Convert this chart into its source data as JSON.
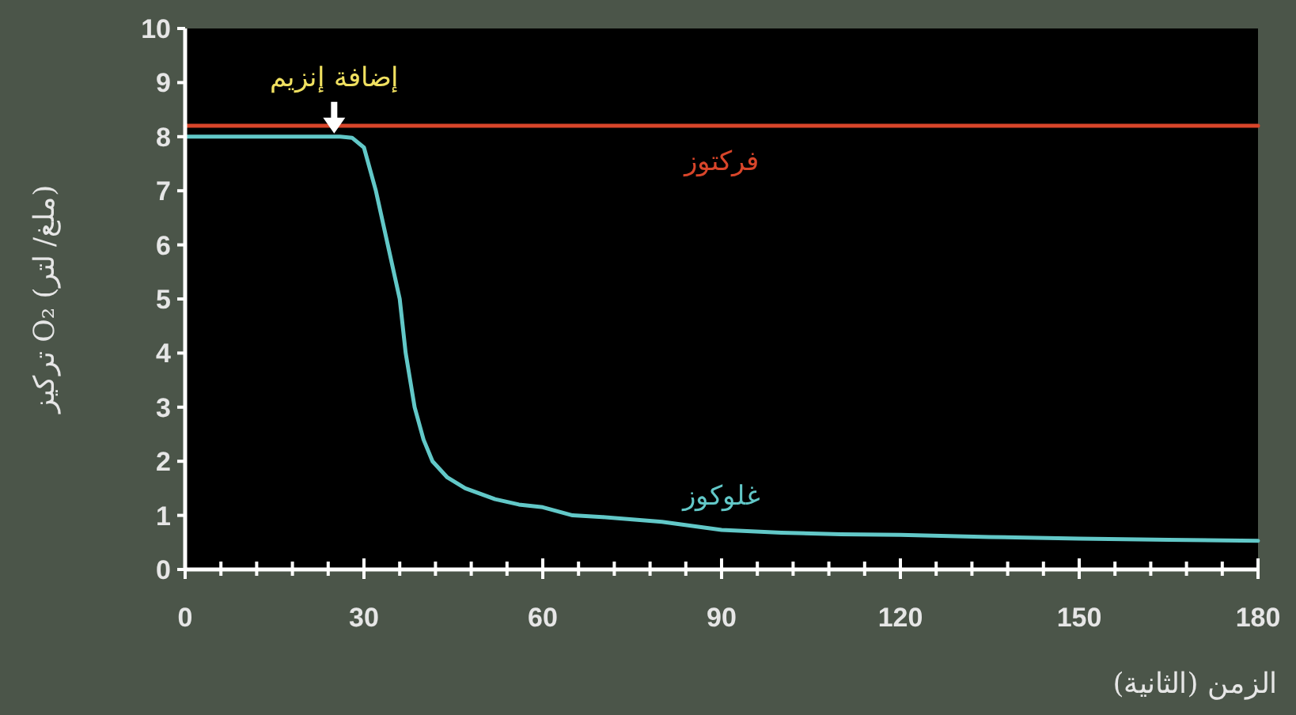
{
  "chart_data": {
    "type": "line",
    "xlabel": "الزمن (الثانية)",
    "ylabel": "تركيز O₂ (ملغ/ لتر)",
    "series": [
      {
        "name": "فركتوز",
        "color": "#d8452a",
        "x": [
          0,
          180
        ],
        "values": [
          8.2,
          8.2
        ]
      },
      {
        "name": "غلوكوز",
        "color": "#62c8c8",
        "x": [
          0,
          10,
          20,
          26,
          28,
          30,
          32,
          34,
          36,
          37,
          38.5,
          40,
          41.5,
          44,
          47,
          52,
          56,
          60,
          65,
          70,
          80,
          90,
          100,
          110,
          120,
          135,
          150,
          165,
          180
        ],
        "values": [
          8.0,
          8.0,
          8.0,
          8.0,
          7.98,
          7.8,
          7.0,
          6.0,
          5.0,
          4.0,
          3.0,
          2.4,
          2.0,
          1.7,
          1.5,
          1.3,
          1.2,
          1.15,
          1.0,
          0.97,
          0.88,
          0.73,
          0.68,
          0.65,
          0.64,
          0.6,
          0.57,
          0.55,
          0.53
        ]
      }
    ],
    "xlim": [
      0,
      180
    ],
    "ylim": [
      0,
      10
    ],
    "xticks": [
      0,
      {
        "value": 6,
        "label": null
      },
      {
        "value": 12,
        "label": null
      },
      {
        "value": 18,
        "label": null
      },
      {
        "value": 24,
        "label": null
      },
      30,
      {
        "value": 36,
        "label": null
      },
      {
        "value": 42,
        "label": null
      },
      {
        "value": 48,
        "label": null
      },
      {
        "value": 54,
        "label": null
      },
      60,
      {
        "value": 66,
        "label": null
      },
      {
        "value": 72,
        "label": null
      },
      {
        "value": 78,
        "label": null
      },
      {
        "value": 84,
        "label": null
      },
      90,
      {
        "value": 96,
        "label": null
      },
      {
        "value": 102,
        "label": null
      },
      {
        "value": 108,
        "label": null
      },
      {
        "value": 114,
        "label": null
      },
      120,
      {
        "value": 126,
        "label": null
      },
      {
        "value": 132,
        "label": null
      },
      {
        "value": 138,
        "label": null
      },
      {
        "value": 144,
        "label": null
      },
      150,
      {
        "value": 156,
        "label": null
      },
      {
        "value": 162,
        "label": null
      },
      {
        "value": 168,
        "label": null
      },
      {
        "value": 174,
        "label": null
      },
      180
    ],
    "yticks": [
      0,
      1,
      2,
      3,
      4,
      5,
      6,
      7,
      8,
      9,
      10
    ],
    "annotations": [
      {
        "text": "إضافة إنزيم",
        "x": 25,
        "y": 8
      }
    ],
    "grid": false,
    "marker": "none",
    "line_style": "solid"
  }
}
